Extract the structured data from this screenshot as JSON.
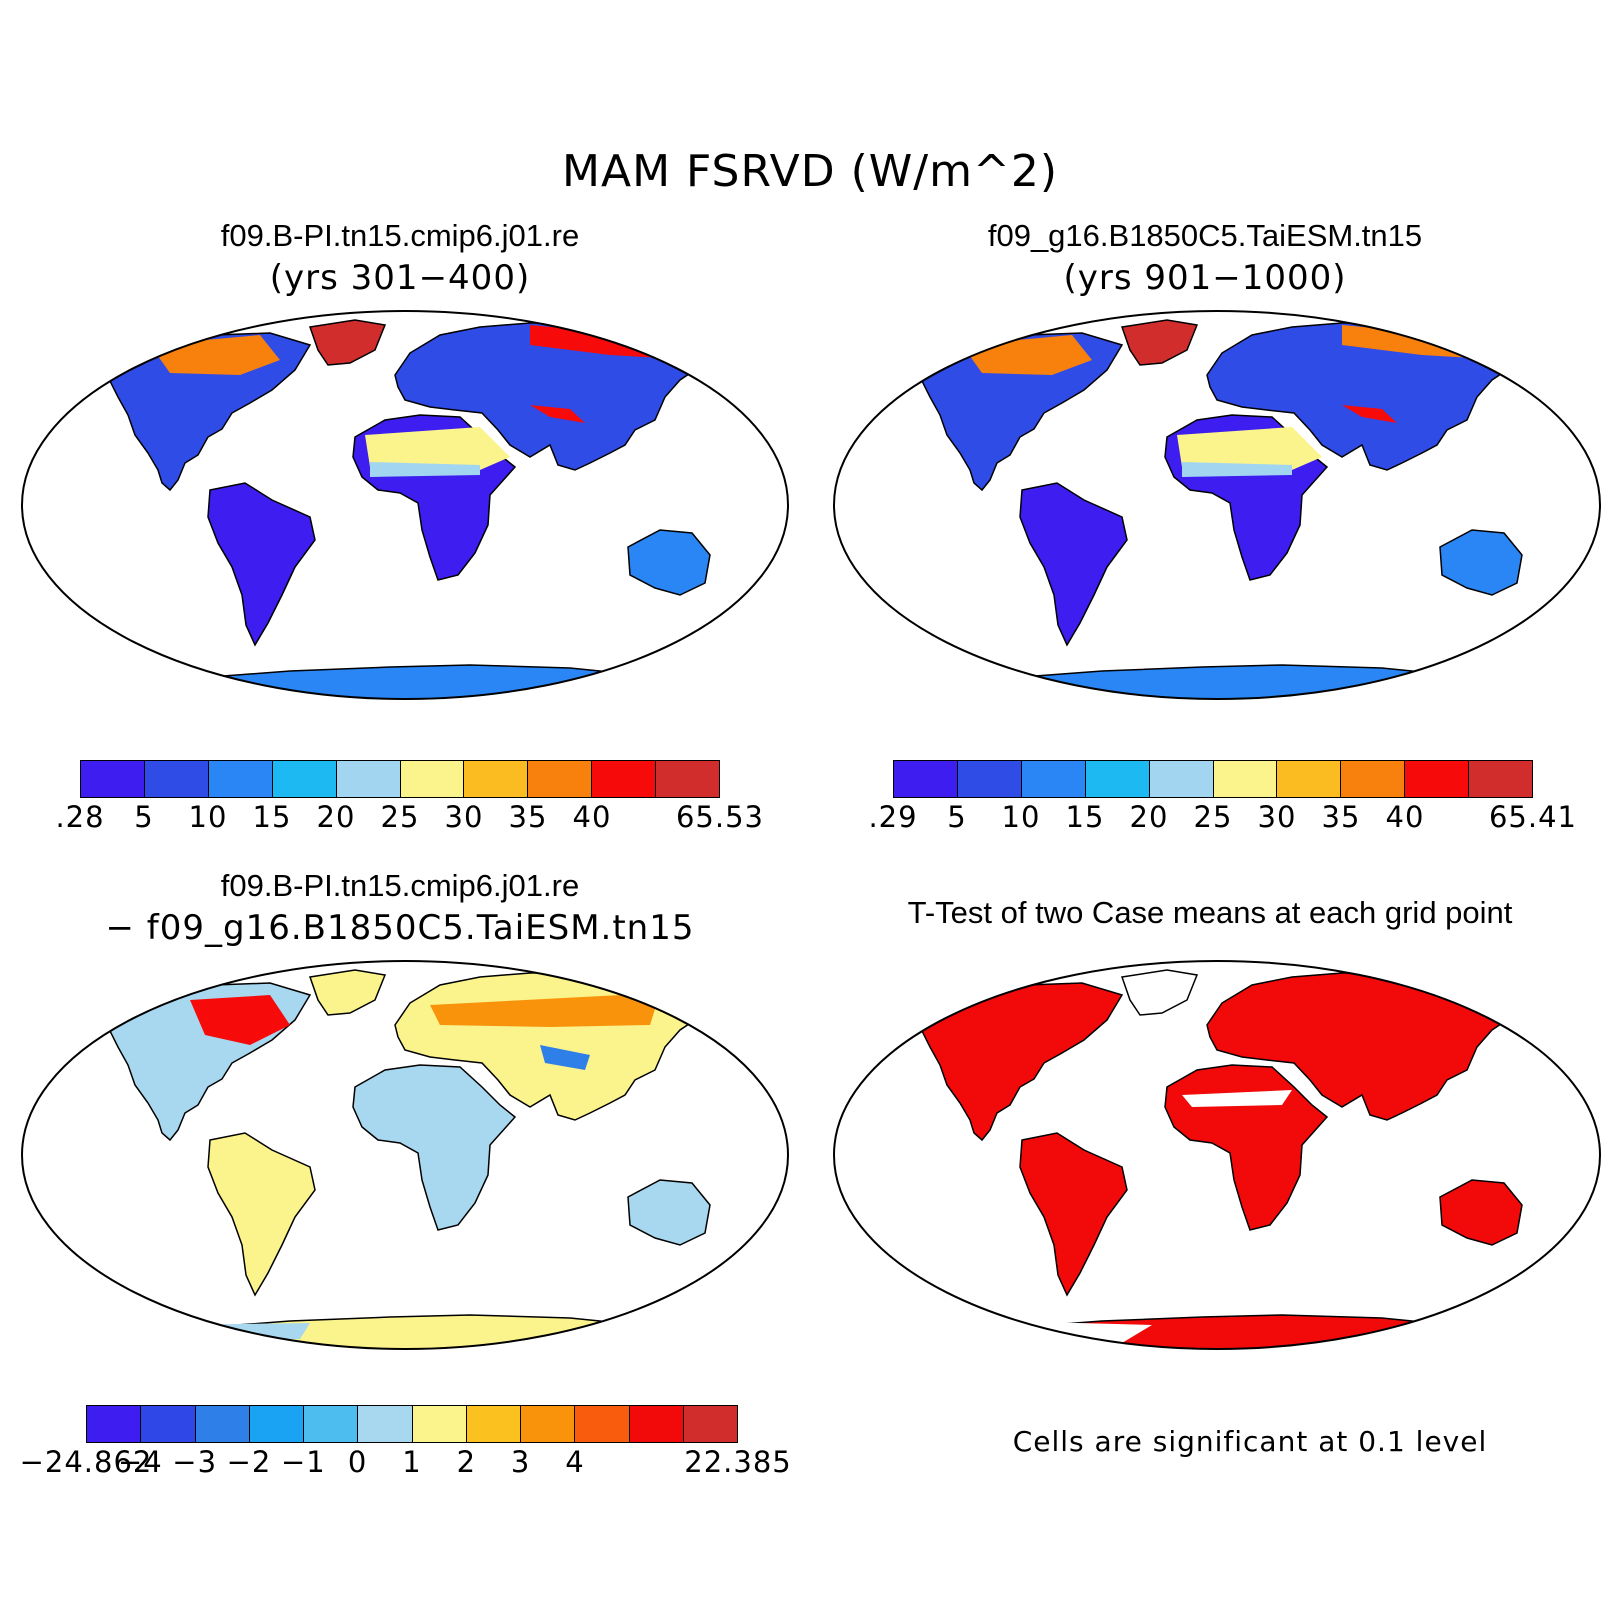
{
  "title": "MAM FSRVD (W/m^2)",
  "panels": [
    {
      "title": "f09.B-PI.tn15.cmip6.j01.re",
      "subtitle": "(yrs 301−400)",
      "colorbar": {
        "colors": [
          "#3d1df0",
          "#2f4ce6",
          "#2a86f5",
          "#1cb9f2",
          "#a2d6f0",
          "#fbf38c",
          "#fbbc22",
          "#f8800c",
          "#f70a0a",
          "#d22d2d"
        ],
        "labels": [
          ".28",
          "5",
          "10",
          "15",
          "20",
          "25",
          "30",
          "35",
          "40",
          "65.53"
        ]
      }
    },
    {
      "title": "f09_g16.B1850C5.TaiESM.tn15",
      "subtitle": "(yrs 901−1000)",
      "colorbar": {
        "colors": [
          "#3d1df0",
          "#2f4ce6",
          "#2a86f5",
          "#1cb9f2",
          "#a2d6f0",
          "#fbf38c",
          "#fbbc22",
          "#f8800c",
          "#f70a0a",
          "#d22d2d"
        ],
        "labels": [
          ".29",
          "5",
          "10",
          "15",
          "20",
          "25",
          "30",
          "35",
          "40",
          "65.41"
        ]
      }
    },
    {
      "title": "f09.B-PI.tn15.cmip6.j01.re",
      "subtitle": "− f09_g16.B1850C5.TaiESM.tn15",
      "colorbar": {
        "colors": [
          "#3d1df0",
          "#2e47e6",
          "#2f7fe8",
          "#1aa3f2",
          "#4dbdf0",
          "#a8d7f0",
          "#fbf38c",
          "#fbc11f",
          "#f9930c",
          "#f85c0c",
          "#f20a0a",
          "#d22d2d"
        ],
        "labels": [
          "−24.862",
          "−4",
          "−3",
          "−2",
          "−1",
          "0",
          "1",
          "2",
          "3",
          "4",
          "22.385"
        ]
      }
    },
    {
      "title": "T-Test of two Case means at each grid point",
      "note": "Cells are significant at 0.1 level"
    }
  ],
  "colors": {
    "ocean": "#ffffff",
    "coastline": "#000000",
    "significant": "#f20a0a"
  }
}
